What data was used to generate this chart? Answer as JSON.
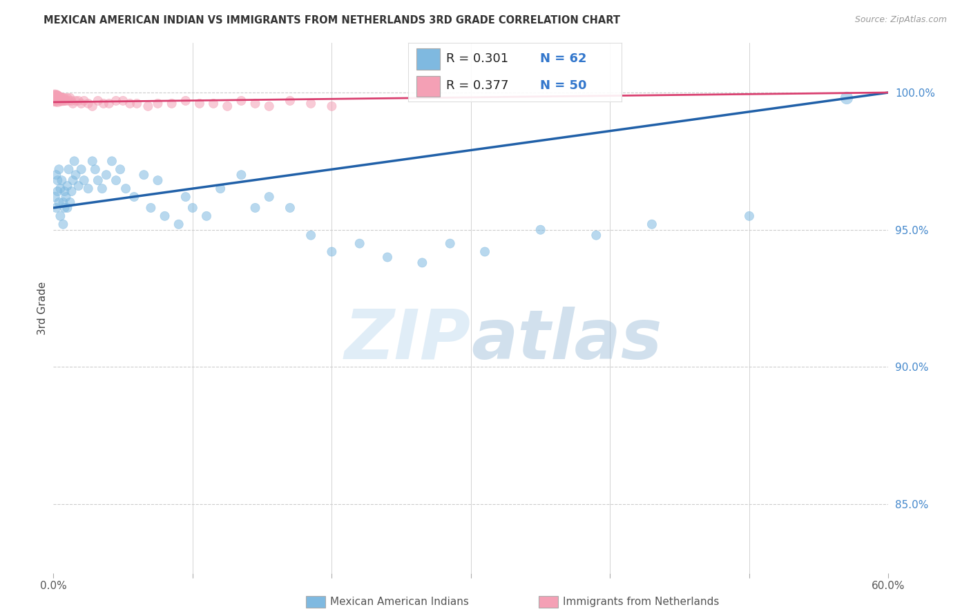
{
  "title": "MEXICAN AMERICAN INDIAN VS IMMIGRANTS FROM NETHERLANDS 3RD GRADE CORRELATION CHART",
  "source": "Source: ZipAtlas.com",
  "ylabel": "3rd Grade",
  "x_min": 0.0,
  "x_max": 0.6,
  "y_min": 0.825,
  "y_max": 1.018,
  "x_ticks": [
    0.0,
    0.1,
    0.2,
    0.3,
    0.4,
    0.5,
    0.6
  ],
  "x_tick_labels": [
    "0.0%",
    "",
    "",
    "",
    "",
    "",
    "60.0%"
  ],
  "y_ticks_right": [
    0.85,
    0.9,
    0.95,
    1.0
  ],
  "y_tick_labels_right": [
    "85.0%",
    "90.0%",
    "95.0%",
    "100.0%"
  ],
  "blue_color": "#7fb9e0",
  "pink_color": "#f4a0b5",
  "blue_line_color": "#2060a8",
  "pink_line_color": "#d94070",
  "blue_R": "0.301",
  "blue_N": "62",
  "pink_R": "0.377",
  "pink_N": "50",
  "legend_label_blue": "Mexican American Indians",
  "legend_label_pink": "Immigrants from Netherlands",
  "watermark_zip": "ZIP",
  "watermark_atlas": "atlas",
  "blue_x": [
    0.001,
    0.002,
    0.002,
    0.003,
    0.003,
    0.004,
    0.004,
    0.005,
    0.005,
    0.006,
    0.007,
    0.007,
    0.008,
    0.008,
    0.009,
    0.01,
    0.01,
    0.011,
    0.012,
    0.013,
    0.014,
    0.015,
    0.016,
    0.018,
    0.02,
    0.022,
    0.025,
    0.028,
    0.03,
    0.032,
    0.035,
    0.038,
    0.042,
    0.045,
    0.048,
    0.052,
    0.058,
    0.065,
    0.07,
    0.075,
    0.08,
    0.09,
    0.095,
    0.1,
    0.11,
    0.12,
    0.135,
    0.145,
    0.155,
    0.17,
    0.185,
    0.2,
    0.22,
    0.24,
    0.265,
    0.285,
    0.31,
    0.35,
    0.39,
    0.43,
    0.5,
    0.57
  ],
  "blue_y": [
    0.962,
    0.958,
    0.97,
    0.964,
    0.968,
    0.96,
    0.972,
    0.965,
    0.955,
    0.968,
    0.952,
    0.96,
    0.964,
    0.958,
    0.962,
    0.958,
    0.966,
    0.972,
    0.96,
    0.964,
    0.968,
    0.975,
    0.97,
    0.966,
    0.972,
    0.968,
    0.965,
    0.975,
    0.972,
    0.968,
    0.965,
    0.97,
    0.975,
    0.968,
    0.972,
    0.965,
    0.962,
    0.97,
    0.958,
    0.968,
    0.955,
    0.952,
    0.962,
    0.958,
    0.955,
    0.965,
    0.97,
    0.958,
    0.962,
    0.958,
    0.948,
    0.942,
    0.945,
    0.94,
    0.938,
    0.945,
    0.942,
    0.95,
    0.948,
    0.952,
    0.955,
    0.998
  ],
  "blue_sizes": [
    100,
    90,
    90,
    90,
    90,
    90,
    90,
    90,
    90,
    90,
    90,
    90,
    90,
    90,
    90,
    90,
    90,
    90,
    90,
    90,
    90,
    90,
    90,
    90,
    90,
    90,
    90,
    90,
    90,
    90,
    90,
    90,
    90,
    90,
    90,
    90,
    90,
    90,
    90,
    90,
    90,
    90,
    90,
    90,
    90,
    90,
    90,
    90,
    90,
    90,
    90,
    90,
    90,
    90,
    90,
    90,
    90,
    90,
    90,
    90,
    90,
    160
  ],
  "pink_x": [
    0.001,
    0.001,
    0.002,
    0.002,
    0.002,
    0.003,
    0.003,
    0.003,
    0.004,
    0.004,
    0.005,
    0.005,
    0.006,
    0.006,
    0.007,
    0.007,
    0.008,
    0.008,
    0.009,
    0.01,
    0.011,
    0.012,
    0.013,
    0.014,
    0.016,
    0.018,
    0.02,
    0.022,
    0.025,
    0.028,
    0.032,
    0.036,
    0.04,
    0.045,
    0.05,
    0.055,
    0.06,
    0.068,
    0.075,
    0.085,
    0.095,
    0.105,
    0.115,
    0.125,
    0.135,
    0.145,
    0.155,
    0.17,
    0.185,
    0.2
  ],
  "pink_y": [
    0.998,
    0.998,
    0.998,
    0.998,
    0.998,
    0.998,
    0.997,
    0.998,
    0.998,
    0.998,
    0.998,
    0.997,
    0.998,
    0.997,
    0.998,
    0.997,
    0.997,
    0.998,
    0.997,
    0.998,
    0.997,
    0.998,
    0.997,
    0.996,
    0.997,
    0.997,
    0.996,
    0.997,
    0.996,
    0.995,
    0.997,
    0.996,
    0.996,
    0.997,
    0.997,
    0.996,
    0.996,
    0.995,
    0.996,
    0.996,
    0.997,
    0.996,
    0.996,
    0.995,
    0.997,
    0.996,
    0.995,
    0.997,
    0.996,
    0.995
  ],
  "pink_sizes": [
    300,
    250,
    250,
    200,
    200,
    180,
    160,
    160,
    140,
    130,
    120,
    110,
    110,
    100,
    100,
    100,
    90,
    90,
    90,
    90,
    90,
    90,
    90,
    90,
    90,
    90,
    90,
    90,
    90,
    90,
    90,
    90,
    90,
    90,
    90,
    90,
    90,
    90,
    90,
    90,
    90,
    90,
    90,
    90,
    90,
    90,
    90,
    90,
    90,
    90
  ],
  "blue_trend_x0": 0.0,
  "blue_trend_y0": 0.958,
  "blue_trend_x1": 0.6,
  "blue_trend_y1": 1.0,
  "pink_trend_x0": 0.0,
  "pink_trend_y0": 0.9965,
  "pink_trend_x1": 0.6,
  "pink_trend_y1": 1.0
}
